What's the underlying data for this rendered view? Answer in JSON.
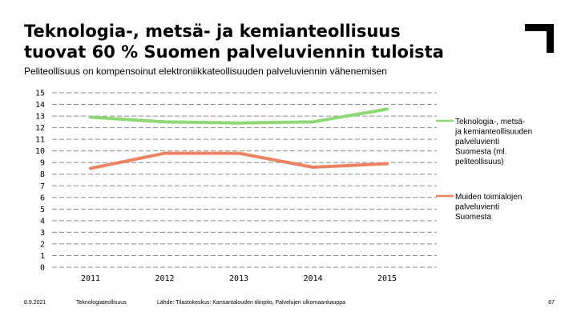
{
  "header": {
    "title_line1": "Teknologia-, metsä- ja kemianteollisuus",
    "title_line2": "tuovat 60 % Suomen palveluviennin tuloista",
    "subtitle": "Peliteollisuus on kompensoinut elektroniikkateollisuuden palveluviennin vähenemisen"
  },
  "chart_data": {
    "type": "line",
    "title": "",
    "xlabel": "",
    "ylabel": "",
    "ylim": [
      0,
      15
    ],
    "yticks": [
      "0",
      "1",
      "2",
      "3",
      "4",
      "5",
      "6",
      "7",
      "8",
      "9",
      "10",
      "11",
      "12",
      "13",
      "14",
      "15"
    ],
    "grid": true,
    "categories": [
      "2011",
      "2012",
      "2013",
      "2014",
      "2015"
    ],
    "series": [
      {
        "name": "Teknologia-, metsä- ja kemianteollisuuden palveluvienti Suomesta (ml. peliteollisuus)",
        "legend_lines": [
          "Teknologia-, metsä-",
          "ja kemianteollisuuden",
          "palveluvienti",
          "Suomesta (ml.",
          "peliteollisuus)"
        ],
        "color": "#8ed973",
        "values": [
          12.9,
          12.5,
          12.4,
          12.5,
          13.6
        ]
      },
      {
        "name": "Muiden toimialojen palveluvienti Suomesta",
        "legend_lines": [
          "Muiden toimialojen",
          "palveluvienti",
          "Suomesta"
        ],
        "color": "#ee8362",
        "values": [
          8.5,
          9.8,
          9.8,
          8.6,
          8.9
        ]
      }
    ],
    "legend_position": "right"
  },
  "footer": {
    "date": "8.9.2021",
    "org": "Teknologiateollisuus",
    "source": "Lähde: Tilastokeskus: Kansantalouden tilinpito, Palvelujen ulkomaankauppa",
    "page": "67"
  },
  "colors": {
    "grid": "#8c8c8c",
    "logo": "#000000"
  }
}
